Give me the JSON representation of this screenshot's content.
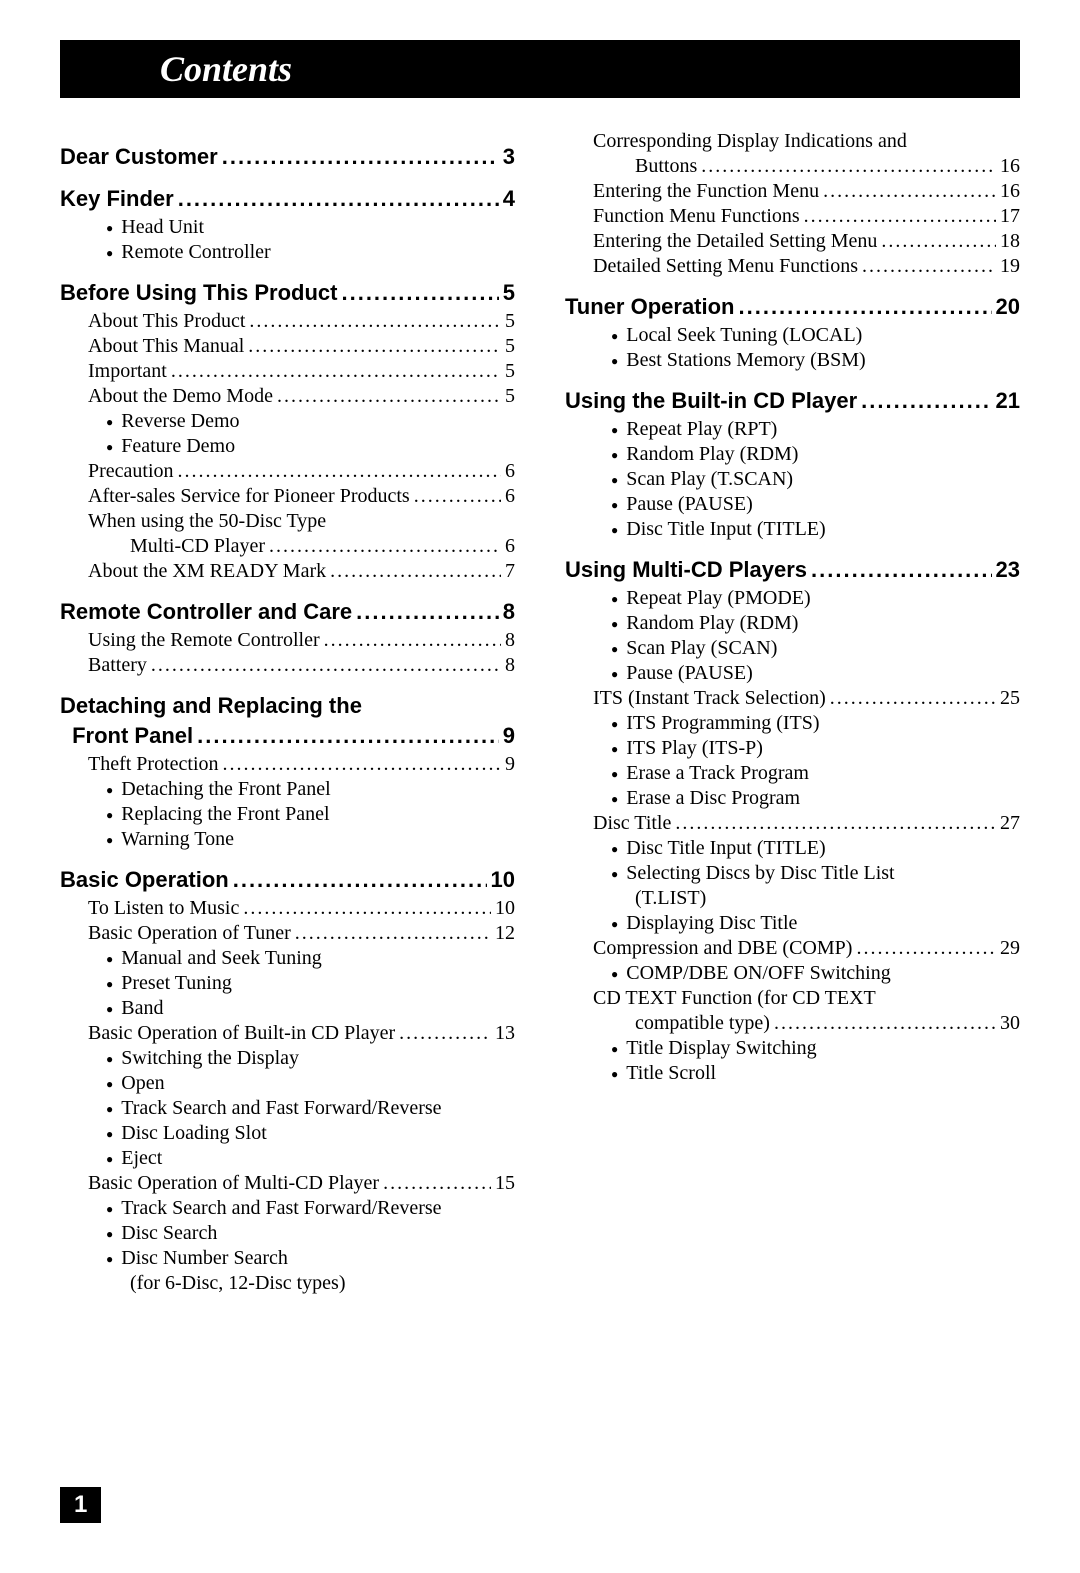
{
  "header": {
    "title": "Contents"
  },
  "page_number": "1",
  "dots": "......................................................................................",
  "left": [
    {
      "type": "section",
      "title": "Dear Customer",
      "page": "3"
    },
    {
      "type": "section",
      "title": "Key Finder",
      "page": "4"
    },
    {
      "type": "bullet",
      "text": "Head Unit"
    },
    {
      "type": "bullet",
      "text": "Remote Controller"
    },
    {
      "type": "section",
      "title": "Before Using This Product",
      "page": "5"
    },
    {
      "type": "entry",
      "title": "About This Product",
      "page": "5"
    },
    {
      "type": "entry",
      "title": "About This Manual",
      "page": "5"
    },
    {
      "type": "entry",
      "title": "Important",
      "page": "5"
    },
    {
      "type": "entry",
      "title": "About the Demo Mode",
      "page": "5"
    },
    {
      "type": "bullet",
      "text": "Reverse Demo"
    },
    {
      "type": "bullet",
      "text": "Feature Demo"
    },
    {
      "type": "entry",
      "title": "Precaution",
      "page": "6"
    },
    {
      "type": "entry",
      "title": "After-sales Service for Pioneer Products",
      "page": "6"
    },
    {
      "type": "entry_nopage",
      "title": "When using the 50-Disc Type"
    },
    {
      "type": "entry_cont",
      "title": "Multi-CD Player",
      "page": "6"
    },
    {
      "type": "entry",
      "title": "About the XM READY Mark",
      "page": "7"
    },
    {
      "type": "section",
      "title": "Remote Controller and Care",
      "page": "8"
    },
    {
      "type": "entry",
      "title": "Using the Remote Controller",
      "page": "8"
    },
    {
      "type": "entry",
      "title": "Battery",
      "page": "8"
    },
    {
      "type": "section",
      "title": "Detaching and Replacing the"
    },
    {
      "type": "section_cont",
      "title": "Front Panel",
      "page": "9"
    },
    {
      "type": "entry",
      "title": "Theft Protection",
      "page": "9"
    },
    {
      "type": "bullet",
      "text": "Detaching the Front Panel"
    },
    {
      "type": "bullet",
      "text": "Replacing the Front Panel"
    },
    {
      "type": "bullet",
      "text": "Warning Tone"
    },
    {
      "type": "section",
      "title": "Basic Operation",
      "page": "10"
    },
    {
      "type": "entry",
      "title": "To Listen to Music",
      "page": "10"
    },
    {
      "type": "entry",
      "title": "Basic Operation of Tuner",
      "page": "12"
    },
    {
      "type": "bullet",
      "text": "Manual and Seek Tuning"
    },
    {
      "type": "bullet",
      "text": "Preset Tuning"
    },
    {
      "type": "bullet",
      "text": "Band"
    },
    {
      "type": "entry",
      "title": "Basic Operation of Built-in CD Player",
      "page": "13"
    },
    {
      "type": "bullet",
      "text": "Switching the Display"
    },
    {
      "type": "bullet",
      "text": "Open"
    },
    {
      "type": "bullet",
      "text": "Track Search and Fast Forward/Reverse"
    },
    {
      "type": "bullet",
      "text": "Disc Loading Slot"
    },
    {
      "type": "bullet",
      "text": "Eject"
    },
    {
      "type": "entry",
      "title": "Basic Operation of Multi-CD Player",
      "page": "15"
    },
    {
      "type": "bullet",
      "text": "Track Search and Fast Forward/Reverse"
    },
    {
      "type": "bullet",
      "text": "Disc Search"
    },
    {
      "type": "bullet",
      "text": "Disc Number Search"
    },
    {
      "type": "sub_cont",
      "text": "(for 6-Disc, 12-Disc types)"
    }
  ],
  "right": [
    {
      "type": "entry_nopage",
      "title": "Corresponding Display Indications and"
    },
    {
      "type": "entry_cont",
      "title": "Buttons",
      "page": "16"
    },
    {
      "type": "entry",
      "title": "Entering the Function Menu",
      "page": "16"
    },
    {
      "type": "entry",
      "title": "Function Menu Functions",
      "page": "17"
    },
    {
      "type": "entry",
      "title": "Entering the Detailed Setting Menu",
      "page": "18"
    },
    {
      "type": "entry",
      "title": "Detailed Setting Menu Functions",
      "page": "19"
    },
    {
      "type": "section",
      "title": "Tuner Operation",
      "page": "20"
    },
    {
      "type": "bullet",
      "text": "Local Seek Tuning (LOCAL)"
    },
    {
      "type": "bullet",
      "text": "Best Stations Memory (BSM)"
    },
    {
      "type": "section",
      "title": "Using the Built-in CD Player",
      "page": "21"
    },
    {
      "type": "bullet",
      "text": "Repeat Play (RPT)"
    },
    {
      "type": "bullet",
      "text": "Random Play (RDM)"
    },
    {
      "type": "bullet",
      "text": "Scan Play (T.SCAN)"
    },
    {
      "type": "bullet",
      "text": "Pause (PAUSE)"
    },
    {
      "type": "bullet",
      "text": "Disc Title Input (TITLE)"
    },
    {
      "type": "section",
      "title": "Using Multi-CD Players",
      "page": "23"
    },
    {
      "type": "bullet",
      "text": "Repeat Play (PMODE)"
    },
    {
      "type": "bullet",
      "text": "Random Play (RDM)"
    },
    {
      "type": "bullet",
      "text": "Scan Play (SCAN)"
    },
    {
      "type": "bullet",
      "text": "Pause (PAUSE)"
    },
    {
      "type": "entry",
      "title": "ITS (Instant Track Selection)",
      "page": "25"
    },
    {
      "type": "bullet",
      "text": "ITS Programming (ITS)"
    },
    {
      "type": "bullet",
      "text": "ITS Play (ITS-P)"
    },
    {
      "type": "bullet",
      "text": "Erase a Track Program"
    },
    {
      "type": "bullet",
      "text": "Erase a Disc Program"
    },
    {
      "type": "entry",
      "title": "Disc Title",
      "page": "27"
    },
    {
      "type": "bullet",
      "text": "Disc Title Input (TITLE)"
    },
    {
      "type": "bullet",
      "text": "Selecting Discs by Disc Title List"
    },
    {
      "type": "bullet_cont",
      "text": "(T.LIST)"
    },
    {
      "type": "bullet",
      "text": "Displaying Disc Title"
    },
    {
      "type": "entry",
      "title": "Compression and DBE (COMP)",
      "page": "29"
    },
    {
      "type": "bullet",
      "text": "COMP/DBE ON/OFF Switching"
    },
    {
      "type": "entry_nopage",
      "title": "CD TEXT Function (for CD TEXT"
    },
    {
      "type": "entry_cont",
      "title": "compatible type)",
      "page": "30"
    },
    {
      "type": "bullet",
      "text": "Title Display Switching"
    },
    {
      "type": "bullet",
      "text": "Title Scroll"
    }
  ]
}
